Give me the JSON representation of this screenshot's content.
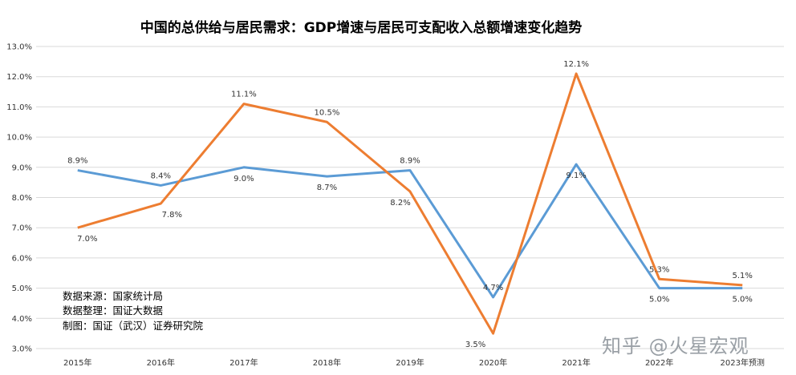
{
  "chart_data": {
    "type": "line",
    "title": "中国的总供给与居民需求：GDP增速与居民可支配收入总额增速变化趋势",
    "categories": [
      "2015年",
      "2016年",
      "2017年",
      "2018年",
      "2019年",
      "2020年",
      "2021年",
      "2022年",
      "2023年预测"
    ],
    "series": [
      {
        "color": "#5b9bd5",
        "values": [
          8.9,
          8.4,
          9.0,
          8.7,
          8.9,
          4.7,
          9.1,
          5.0,
          5.0
        ],
        "labels": [
          "8.9%",
          "8.4%",
          "9.0%",
          "8.7%",
          "8.9%",
          "4.7%",
          "9.1%",
          "5.0%",
          "5.0%"
        ]
      },
      {
        "color": "#ed7d31",
        "values": [
          7.0,
          7.8,
          11.1,
          10.5,
          8.2,
          3.5,
          12.1,
          5.3,
          5.1
        ],
        "labels": [
          "7.0%",
          "7.8%",
          "11.1%",
          "10.5%",
          "8.2%",
          "3.5%",
          "12.1%",
          "5.3%",
          "5.1%"
        ]
      }
    ],
    "ylim": [
      3.0,
      13.0
    ],
    "y_ticks": [
      "3.0%",
      "4.0%",
      "5.0%",
      "6.0%",
      "7.0%",
      "8.0%",
      "9.0%",
      "10.0%",
      "11.0%",
      "12.0%",
      "13.0%"
    ],
    "grid": true,
    "legend": "none"
  },
  "notes": [
    "数据来源：国家统计局",
    "数据整理：国证大数据",
    "制图：国证（武汉）证券研究院"
  ],
  "watermark": "知乎 @火星宏观"
}
